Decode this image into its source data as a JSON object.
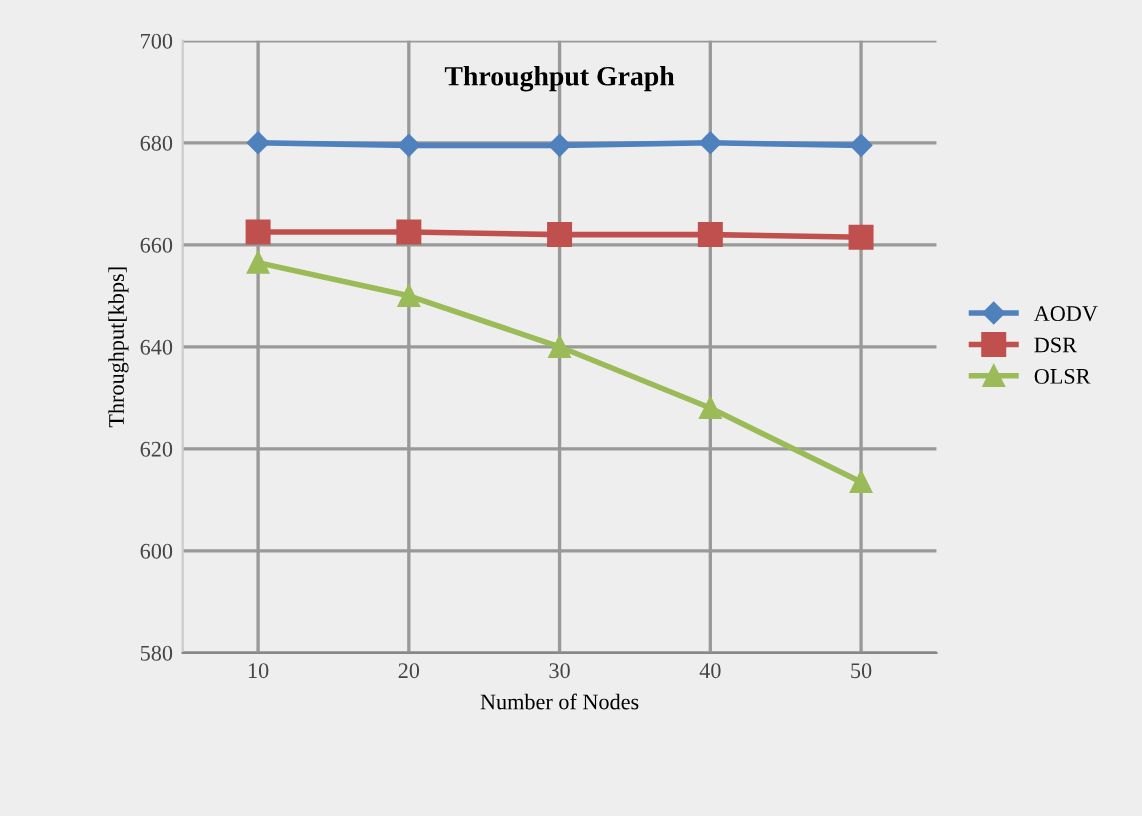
{
  "chart_data": {
    "type": "line",
    "title": "Throughput Graph",
    "xlabel": "Number of Nodes",
    "ylabel": "Throughput[kbps]",
    "categories": [
      "10",
      "20",
      "30",
      "40",
      "50"
    ],
    "series": [
      {
        "name": "AODV",
        "color": "#4f81bd",
        "marker": "diamond",
        "values": [
          680,
          679.5,
          679.5,
          680,
          679.5
        ]
      },
      {
        "name": "DSR",
        "color": "#c0504d",
        "marker": "square",
        "values": [
          662.5,
          662.5,
          662,
          662,
          661.5
        ]
      },
      {
        "name": "OLSR",
        "color": "#9bbb59",
        "marker": "triangle",
        "values": [
          656.5,
          650,
          640,
          628,
          613.5
        ]
      }
    ],
    "ylim": [
      580,
      700
    ],
    "yticks": [
      580,
      600,
      620,
      640,
      660,
      680,
      700
    ],
    "grid": true,
    "legend": "right",
    "line_style": "solid"
  }
}
